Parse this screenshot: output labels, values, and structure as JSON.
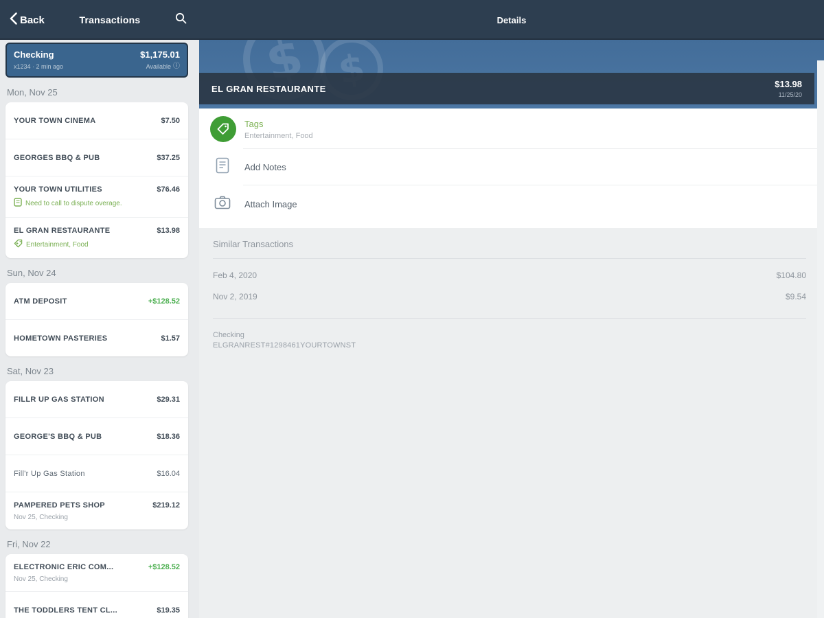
{
  "nav": {
    "back_label": "Back",
    "left_title": "Transactions",
    "right_title": "Details"
  },
  "account_card": {
    "name": "Checking",
    "balance": "$1,175.01",
    "subtitle": "x1234 · 2 min ago",
    "available_label": "Available"
  },
  "transaction_groups": [
    {
      "date": "Mon, Nov 25",
      "items": [
        {
          "name": "YOUR TOWN CINEMA",
          "amount": "$7.50"
        },
        {
          "name": "GEORGES BBQ & PUB",
          "amount": "$37.25"
        },
        {
          "name": "YOUR TOWN UTILITIES",
          "amount": "$76.46",
          "note": "Need to call to dispute overage.",
          "note_icon": "note-icon"
        },
        {
          "name": "EL GRAN RESTAURANTE",
          "amount": "$13.98",
          "note": "Entertainment, Food",
          "note_icon": "tag-icon"
        }
      ]
    },
    {
      "date": "Sun, Nov 24",
      "items": [
        {
          "name": "ATM DEPOSIT",
          "amount": "+$128.52",
          "positive": true
        },
        {
          "name": "HOMETOWN PASTERIES",
          "amount": "$1.57"
        }
      ]
    },
    {
      "date": "Sat, Nov 23",
      "items": [
        {
          "name": "FILLR UP GAS STATION",
          "amount": "$29.31"
        },
        {
          "name": "GEORGE'S BBQ & PUB",
          "amount": "$18.36"
        },
        {
          "name": "Fill'r Up Gas Station",
          "amount": "$16.04",
          "light": true
        },
        {
          "name": "PAMPERED PETS SHOP",
          "amount": "$219.12",
          "subtitle": "Nov 25, Checking"
        }
      ]
    },
    {
      "date": "Fri, Nov 22",
      "items": [
        {
          "name": "ELECTRONIC ERIC COM...",
          "amount": "+$128.52",
          "positive": true,
          "subtitle": "Nov 25, Checking"
        },
        {
          "name": "THE TODDLERS TENT CL...",
          "amount": "$19.35"
        }
      ]
    }
  ],
  "details": {
    "merchant": "EL GRAN RESTAURANTE",
    "amount": "$13.98",
    "date": "11/25/20",
    "actions": {
      "tags_label": "Tags",
      "tags_value": "Entertainment, Food",
      "add_notes_label": "Add Notes",
      "attach_image_label": "Attach Image"
    },
    "similar": {
      "title": "Similar Transactions",
      "rows": [
        {
          "date": "Feb 4, 2020",
          "amount": "$104.80"
        },
        {
          "date": "Nov 2, 2019",
          "amount": "$9.54"
        }
      ],
      "account": "Checking",
      "reference": "ELGRANREST#1298461YOURTOWNST"
    }
  },
  "icons": {
    "back": "chevron-left-icon",
    "search": "search-icon",
    "info": "info-icon",
    "note": "note-icon",
    "tag": "tag-icon",
    "add_notes": "document-icon",
    "attach_image": "camera-icon",
    "watermark": "dollar-watermark-icon"
  },
  "colors": {
    "nav_navy": "#2d3e50",
    "account_card_blue": "#3a658e",
    "banner_blue": "#4a74a1",
    "positive_green": "#4caf50",
    "tag_green": "#3f9d35",
    "accent_text_green": "#7cb153",
    "sidebar_bg": "#e9ebed",
    "details_bg": "#edeff0"
  }
}
